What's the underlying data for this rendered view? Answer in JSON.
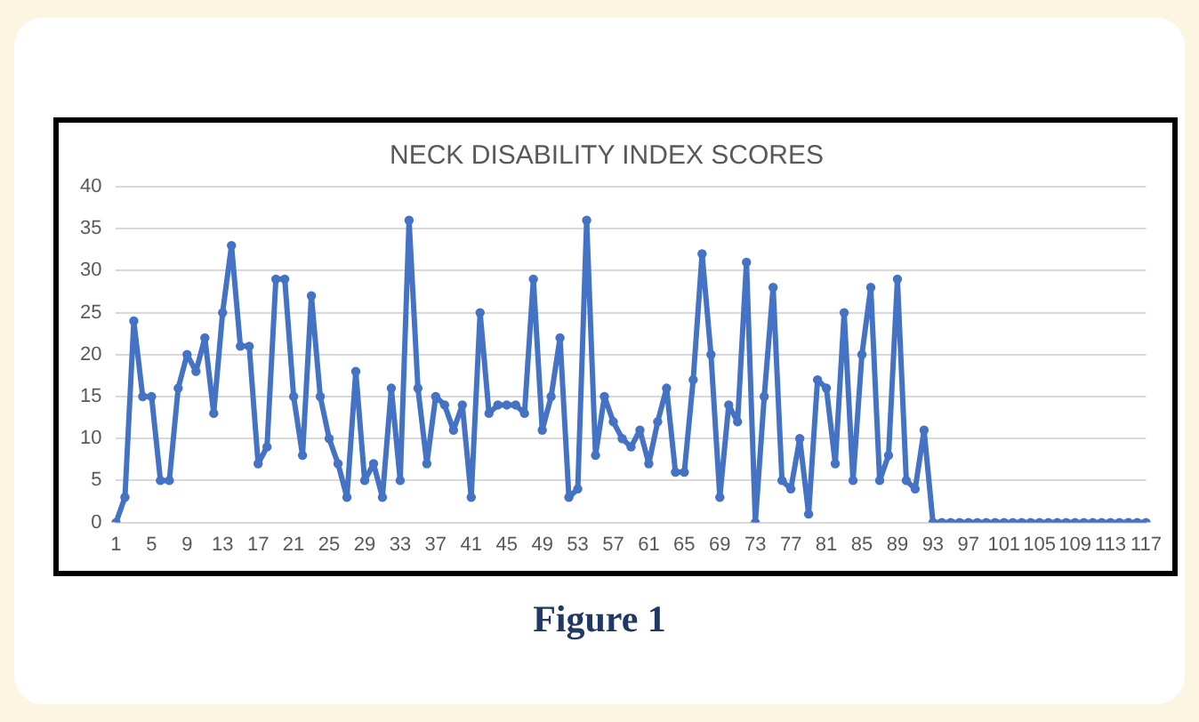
{
  "chart_data": {
    "type": "line",
    "title": "NECK DISABILITY INDEX SCORES",
    "categories": [
      "1",
      null,
      null,
      null,
      "5",
      null,
      null,
      null,
      "9",
      null,
      null,
      null,
      "13",
      null,
      null,
      null,
      "17",
      null,
      null,
      null,
      "21",
      null,
      null,
      null,
      "25",
      null,
      null,
      null,
      "29",
      null,
      null,
      null,
      "33",
      null,
      null,
      null,
      "37",
      null,
      null,
      null,
      "41",
      null,
      null,
      null,
      "45",
      null,
      null,
      null,
      "49",
      null,
      null,
      null,
      "53",
      null,
      null,
      null,
      "57",
      null,
      null,
      null,
      "61",
      null,
      null,
      null,
      "65",
      null,
      null,
      null,
      "69",
      null,
      null,
      null,
      "73",
      null,
      null,
      null,
      "77",
      null,
      null,
      null,
      "81",
      null,
      null,
      null,
      "85",
      null,
      null,
      null,
      "89",
      null,
      null,
      null,
      "93",
      null,
      null,
      null,
      "97",
      null,
      null,
      null,
      "101",
      null,
      null,
      null,
      "105",
      null,
      null,
      null,
      "109",
      null,
      null,
      null,
      "113",
      null,
      null,
      null,
      "117"
    ],
    "series": [
      {
        "color": "#4472c4",
        "values": [
          0,
          3,
          24,
          15,
          15,
          5,
          5,
          16,
          20,
          18,
          22,
          13,
          25,
          33,
          21,
          21,
          7,
          9,
          29,
          29,
          15,
          8,
          27,
          15,
          10,
          7,
          3,
          18,
          5,
          7,
          3,
          16,
          5,
          36,
          16,
          7,
          15,
          14,
          11,
          14,
          3,
          25,
          13,
          14,
          14,
          14,
          13,
          29,
          11,
          15,
          22,
          3,
          4,
          36,
          8,
          15,
          12,
          10,
          9,
          11,
          7,
          12,
          16,
          6,
          6,
          17,
          32,
          20,
          3,
          14,
          12,
          31,
          0,
          15,
          28,
          5,
          4,
          10,
          1,
          17,
          16,
          7,
          25,
          5,
          20,
          28,
          5,
          8,
          29,
          5,
          4,
          11,
          0,
          0,
          0,
          0,
          0,
          0,
          0,
          0,
          0,
          0,
          0,
          0,
          0,
          0,
          0,
          0,
          0,
          0,
          0,
          0,
          0,
          0,
          0,
          0,
          0
        ]
      }
    ],
    "ylim": [
      0,
      40
    ],
    "yticks": [
      0,
      5,
      10,
      15,
      20,
      25,
      30,
      35,
      40
    ],
    "grid": "y",
    "marker": "circle",
    "line_style": "solid",
    "annotations": [
      "Figure 1"
    ]
  }
}
